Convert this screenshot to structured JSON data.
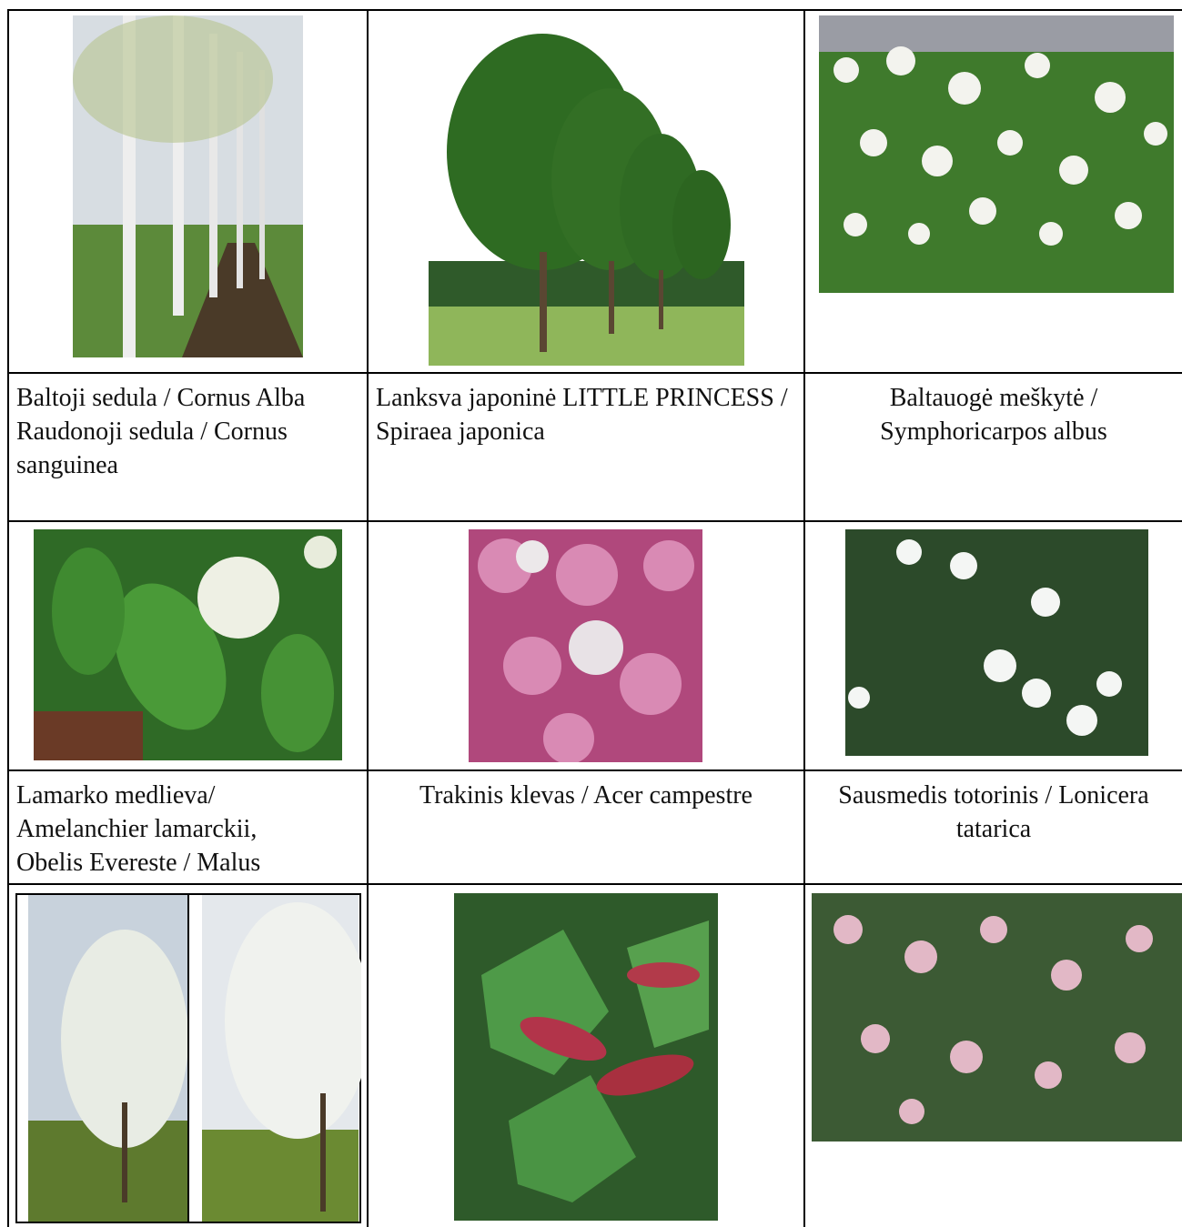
{
  "table": {
    "captions": [
      [
        "Baltoji sedula / Cornus Alba Raudonoji sedula / Cornus sanguinea",
        "Lanksva japoninė LITTLE PRINCESS / Spiraea japonica",
        "Baltauogė meškytė / Symphoricarpos albus"
      ],
      [
        "Lamarko medlieva/ Amelanchier lamarckii, Obelis Evereste / Malus",
        "Trakinis klevas / Acer campestre",
        "Sausmedis totorinis / Lonicera tatarica"
      ]
    ]
  }
}
